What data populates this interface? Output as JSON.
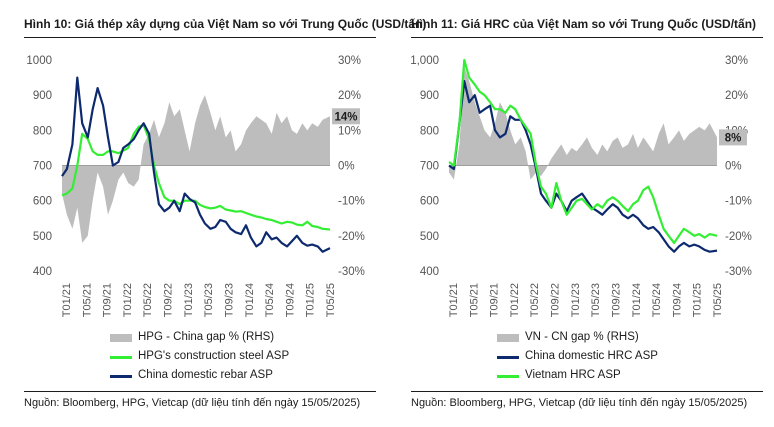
{
  "panels": [
    {
      "title": "Hình 10: Giá thép xây dựng của Việt Nam so với Trung Quốc (USD/tấn)",
      "source": "Nguồn: Bloomberg, HPG, Vietcap (dữ liệu tính đến ngày 15/05/2025)",
      "legend": [
        "HPG - China gap % (RHS)",
        "HPG's construction steel ASP",
        "China domestic rebar ASP"
      ]
    },
    {
      "title": "Hình 11: Giá HRC của Việt Nam so với Trung Quốc (USD/tấn)",
      "source": "Nguồn: Bloomberg, HPG, Vietcap (dữ liệu tính đến ngày 15/05/2025)",
      "legend": [
        "VN - CN gap % (RHS)",
        "China domestic HRC ASP",
        "Vietnam HRC ASP"
      ]
    }
  ],
  "colors": {
    "gap": "#bdbdbd",
    "green": "#33ee33",
    "navy": "#0d2a6e",
    "axis": "#555555"
  },
  "chart_data": [
    {
      "type": "line",
      "x_ticks": [
        "T01/21",
        "T05/21",
        "T09/21",
        "T01/22",
        "T05/22",
        "T09/22",
        "T01/23",
        "T05/23",
        "T09/23",
        "T01/24",
        "T05/24",
        "T09/24",
        "T01/25",
        "T05/25"
      ],
      "x": [
        2021.0,
        2021.08,
        2021.17,
        2021.25,
        2021.33,
        2021.42,
        2021.5,
        2021.58,
        2021.67,
        2021.75,
        2021.83,
        2021.92,
        2022.0,
        2022.08,
        2022.17,
        2022.25,
        2022.33,
        2022.42,
        2022.5,
        2022.58,
        2022.67,
        2022.75,
        2022.83,
        2022.92,
        2023.0,
        2023.08,
        2023.17,
        2023.25,
        2023.33,
        2023.42,
        2023.5,
        2023.58,
        2023.67,
        2023.75,
        2023.83,
        2023.92,
        2024.0,
        2024.08,
        2024.17,
        2024.25,
        2024.33,
        2024.42,
        2024.5,
        2024.58,
        2024.67,
        2024.75,
        2024.83,
        2024.92,
        2025.0,
        2025.08,
        2025.17,
        2025.25,
        2025.37
      ],
      "ylim_left": [
        400,
        1000
      ],
      "yticks_left": [
        400,
        500,
        600,
        700,
        800,
        900,
        1000
      ],
      "ylim_right": [
        -30,
        30
      ],
      "yticks_right": [
        -30,
        -20,
        -10,
        0,
        10,
        20,
        30
      ],
      "ytick_labels_left": [
        "400",
        "500",
        "600",
        "700",
        "800",
        "900",
        "1000"
      ],
      "ytick_labels_right": [
        "-30%",
        "-20%",
        "-10%",
        "0%",
        "10%",
        "20%",
        "30%"
      ],
      "last_label": "14%",
      "series": [
        {
          "name": "HPG - China gap % (RHS)",
          "axis": "right",
          "kind": "area",
          "values": [
            -8,
            -14,
            -18,
            -12,
            -22,
            -20,
            -10,
            -2,
            -6,
            -14,
            -10,
            -4,
            -2,
            -5,
            -6,
            -4,
            6,
            9,
            13,
            8,
            12,
            18,
            14,
            16,
            10,
            4,
            12,
            17,
            20,
            15,
            10,
            14,
            8,
            10,
            4,
            6,
            10,
            12,
            14,
            13,
            12,
            9,
            15,
            12,
            14,
            10,
            9,
            12,
            10,
            12,
            11,
            13,
            14
          ]
        },
        {
          "name": "HPG's construction steel ASP",
          "axis": "left",
          "kind": "line",
          "values": [
            615,
            620,
            635,
            700,
            790,
            775,
            740,
            730,
            730,
            740,
            740,
            735,
            742,
            750,
            790,
            810,
            815,
            775,
            700,
            650,
            610,
            600,
            600,
            590,
            600,
            600,
            600,
            588,
            582,
            578,
            580,
            585,
            575,
            572,
            569,
            570,
            565,
            560,
            555,
            552,
            548,
            545,
            540,
            535,
            540,
            538,
            532,
            530,
            540,
            528,
            525,
            520,
            518
          ]
        },
        {
          "name": "China domestic rebar ASP",
          "axis": "left",
          "kind": "line",
          "values": [
            670,
            690,
            760,
            950,
            820,
            780,
            860,
            920,
            870,
            780,
            700,
            710,
            750,
            760,
            775,
            800,
            820,
            790,
            680,
            590,
            570,
            580,
            600,
            570,
            620,
            605,
            595,
            560,
            535,
            520,
            525,
            545,
            540,
            520,
            510,
            505,
            530,
            495,
            470,
            480,
            510,
            490,
            495,
            480,
            470,
            485,
            500,
            480,
            472,
            475,
            470,
            455,
            465
          ]
        }
      ]
    },
    {
      "type": "line",
      "x_ticks": [
        "T01/21",
        "T05/21",
        "T09/21",
        "T01/22",
        "T05/22",
        "T09/22",
        "T01/23",
        "T05/23",
        "T09/23",
        "T01/24",
        "T05/24",
        "T09/24",
        "T01/25",
        "T05/25"
      ],
      "x": [
        2021.0,
        2021.08,
        2021.17,
        2021.25,
        2021.33,
        2021.42,
        2021.5,
        2021.58,
        2021.67,
        2021.75,
        2021.83,
        2021.92,
        2022.0,
        2022.08,
        2022.17,
        2022.25,
        2022.33,
        2022.42,
        2022.5,
        2022.58,
        2022.67,
        2022.75,
        2022.83,
        2022.92,
        2023.0,
        2023.08,
        2023.17,
        2023.25,
        2023.33,
        2023.42,
        2023.5,
        2023.58,
        2023.67,
        2023.75,
        2023.83,
        2023.92,
        2024.0,
        2024.08,
        2024.17,
        2024.25,
        2024.33,
        2024.42,
        2024.5,
        2024.58,
        2024.67,
        2024.75,
        2024.83,
        2024.92,
        2025.0,
        2025.08,
        2025.17,
        2025.25,
        2025.37
      ],
      "ylim_left": [
        400,
        1000
      ],
      "yticks_left": [
        400,
        500,
        600,
        700,
        800,
        900,
        1000
      ],
      "ylim_right": [
        -30,
        30
      ],
      "yticks_right": [
        -30,
        -20,
        -10,
        0,
        10,
        20,
        30
      ],
      "ytick_labels_left": [
        "400",
        "500",
        "600",
        "700",
        "800",
        "900",
        "1,000"
      ],
      "ytick_labels_right": [
        "-30%",
        "-20%",
        "-10%",
        "0%",
        "10%",
        "20%",
        "30%"
      ],
      "last_label": "8%",
      "series": [
        {
          "name": "VN - CN gap % (RHS)",
          "axis": "right",
          "kind": "area",
          "values": [
            -2,
            -4,
            6,
            28,
            24,
            18,
            14,
            10,
            8,
            12,
            18,
            15,
            10,
            6,
            8,
            4,
            -4,
            -2,
            -3,
            -1,
            2,
            4,
            6,
            3,
            5,
            4,
            6,
            8,
            5,
            3,
            6,
            4,
            7,
            8,
            5,
            6,
            9,
            5,
            8,
            6,
            4,
            9,
            12,
            6,
            8,
            10,
            7,
            9,
            10,
            11,
            10,
            12,
            8
          ]
        },
        {
          "name": "China domestic HRC ASP",
          "axis": "left",
          "kind": "line",
          "values": [
            700,
            690,
            820,
            940,
            880,
            900,
            850,
            860,
            870,
            800,
            780,
            790,
            840,
            830,
            830,
            800,
            760,
            690,
            620,
            600,
            580,
            620,
            600,
            570,
            600,
            610,
            620,
            600,
            580,
            570,
            560,
            575,
            590,
            580,
            560,
            550,
            560,
            550,
            530,
            520,
            525,
            510,
            490,
            470,
            455,
            470,
            480,
            470,
            475,
            470,
            460,
            455,
            458
          ]
        },
        {
          "name": "Vietnam HRC ASP",
          "axis": "left",
          "kind": "line",
          "values": [
            710,
            700,
            820,
            1000,
            950,
            930,
            910,
            900,
            880,
            860,
            860,
            850,
            870,
            860,
            830,
            810,
            790,
            700,
            640,
            620,
            580,
            650,
            600,
            560,
            580,
            600,
            605,
            590,
            575,
            590,
            580,
            600,
            610,
            600,
            585,
            570,
            590,
            600,
            630,
            640,
            610,
            560,
            520,
            500,
            480,
            500,
            520,
            510,
            500,
            505,
            495,
            505,
            500
          ]
        }
      ]
    }
  ]
}
